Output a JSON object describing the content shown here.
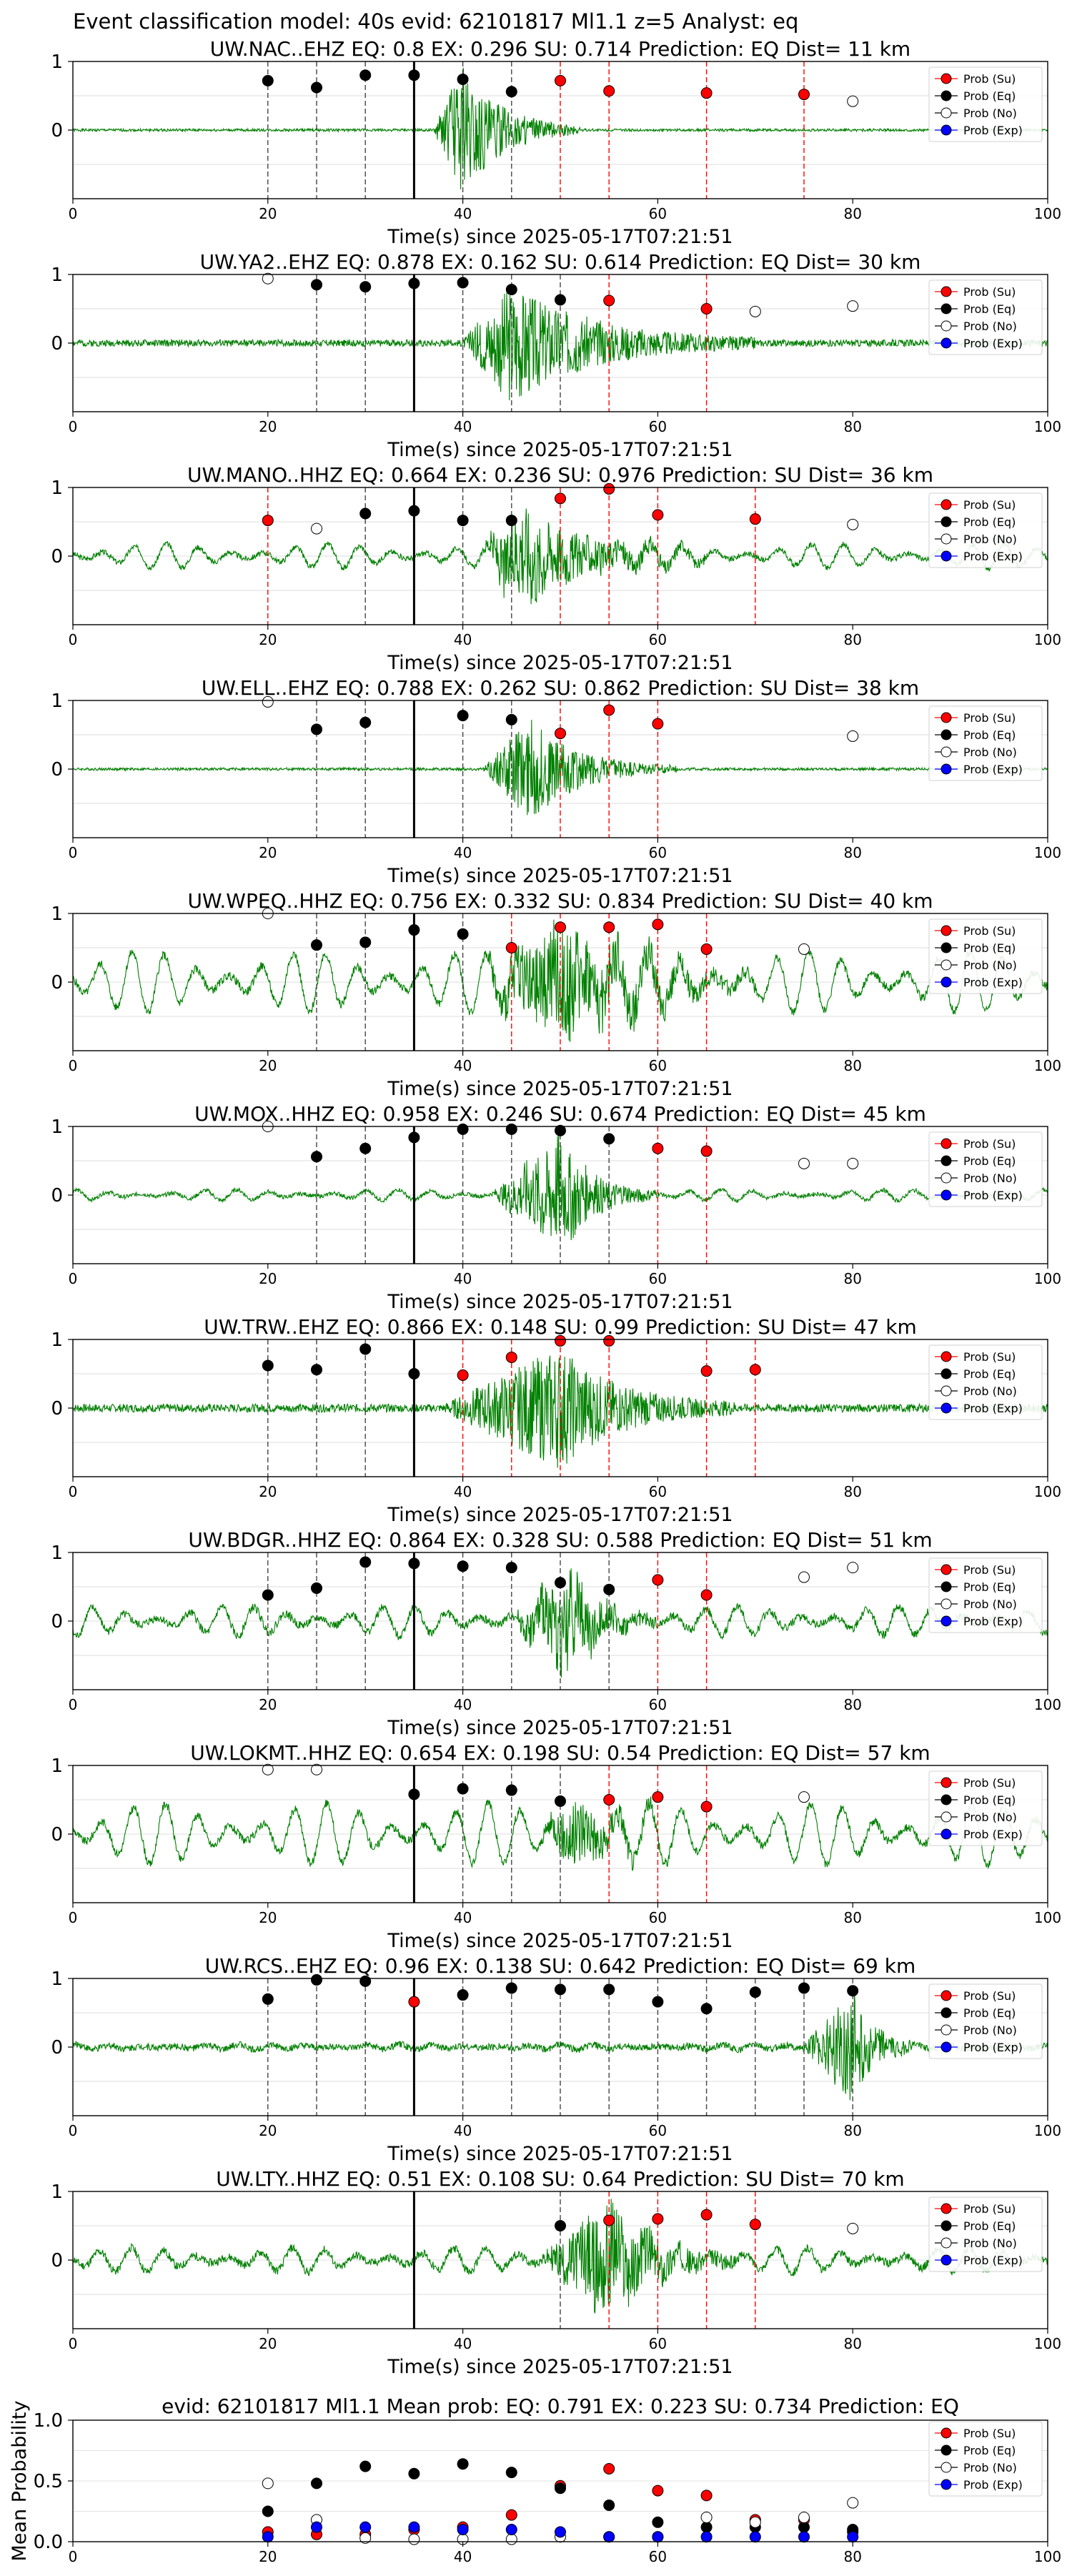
{
  "figure": {
    "suptitle": "Event classification model: 40s evid: 62101817 Ml1.1 z=5 Analyst: eq",
    "legend_labels": [
      "Prob (Su)",
      "Prob (Eq)",
      "Prob (No)",
      "Prob (Exp)"
    ],
    "xlabel": "Time(s) since 2025-05-17T07:21:51",
    "xticks": [
      0,
      20,
      40,
      60,
      80,
      100
    ],
    "yticks": [
      1,
      0
    ],
    "xlim": [
      0,
      100
    ],
    "colors": {
      "su": "#ff0000",
      "eq": "#000000",
      "no": "#ffffff",
      "exp": "#0000ff",
      "trace": "#008000",
      "su_line": "#ff0000",
      "eq_line": "#444444"
    }
  },
  "chart_data": [
    {
      "type": "scatter",
      "title": "UW.NAC..EHZ   EQ: 0.8  EX: 0.296  SU: 0.714   Prediction: EQ    Dist= 11 km",
      "xlabel": "Time(s) since 2025-05-17T07:21:51",
      "xlim": [
        0,
        100
      ],
      "ylim": [
        -1,
        1
      ],
      "pick_time": 35,
      "trace": {
        "noise": 0.02,
        "osc": 0,
        "sig_start": 37,
        "sig_peak": 40,
        "sig_end": 52,
        "sig_amp": 0.95,
        "seed": 1
      },
      "series": [
        {
          "name": "Prob (Su)",
          "x": [
            50,
            55,
            65,
            75
          ],
          "y": [
            0.72,
            0.57,
            0.54,
            0.52
          ]
        },
        {
          "name": "Prob (Eq)",
          "x": [
            20,
            25,
            30,
            35,
            40,
            45
          ],
          "y": [
            0.72,
            0.62,
            0.8,
            0.8,
            0.74,
            0.56
          ]
        },
        {
          "name": "Prob (No)",
          "x": [
            80
          ],
          "y": [
            0.42
          ]
        },
        {
          "name": "Prob (Exp)",
          "x": [],
          "y": []
        }
      ]
    },
    {
      "type": "scatter",
      "title": "UW.YA2..EHZ   EQ: 0.878  EX: 0.162  SU: 0.614   Prediction: EQ    Dist= 30 km",
      "xlabel": "Time(s) since 2025-05-17T07:21:51",
      "xlim": [
        0,
        100
      ],
      "ylim": [
        -1,
        1
      ],
      "pick_time": 35,
      "trace": {
        "noise": 0.05,
        "osc": 0,
        "sig_start": 40,
        "sig_peak": 45,
        "sig_end": 70,
        "sig_amp": 0.85,
        "seed": 2
      },
      "series": [
        {
          "name": "Prob (Su)",
          "x": [
            55,
            65
          ],
          "y": [
            0.62,
            0.5
          ]
        },
        {
          "name": "Prob (Eq)",
          "x": [
            25,
            30,
            35,
            40,
            45,
            50
          ],
          "y": [
            0.85,
            0.82,
            0.87,
            0.88,
            0.78,
            0.63
          ]
        },
        {
          "name": "Prob (No)",
          "x": [
            20,
            70,
            80
          ],
          "y": [
            0.94,
            0.46,
            0.54
          ]
        },
        {
          "name": "Prob (Exp)",
          "x": [],
          "y": []
        }
      ]
    },
    {
      "type": "scatter",
      "title": "UW.MANO..HHZ   EQ: 0.664  EX: 0.236  SU: 0.976   Prediction: SU    Dist= 36 km",
      "xlabel": "Time(s) since 2025-05-17T07:21:51",
      "xlim": [
        0,
        100
      ],
      "ylim": [
        -1,
        1
      ],
      "pick_time": 35,
      "trace": {
        "noise": 0.04,
        "osc": 0.18,
        "sig_start": 42,
        "sig_peak": 46,
        "sig_end": 65,
        "sig_amp": 0.75,
        "seed": 3
      },
      "series": [
        {
          "name": "Prob (Su)",
          "x": [
            20,
            50,
            55,
            60,
            70
          ],
          "y": [
            0.52,
            0.84,
            0.98,
            0.6,
            0.54
          ]
        },
        {
          "name": "Prob (Eq)",
          "x": [
            30,
            35,
            40,
            45
          ],
          "y": [
            0.62,
            0.66,
            0.52,
            0.52
          ]
        },
        {
          "name": "Prob (No)",
          "x": [
            25,
            80
          ],
          "y": [
            0.4,
            0.46
          ]
        },
        {
          "name": "Prob (Exp)",
          "x": [],
          "y": []
        }
      ]
    },
    {
      "type": "scatter",
      "title": "UW.ELL..EHZ   EQ: 0.788  EX: 0.262  SU: 0.862   Prediction: SU    Dist= 38 km",
      "xlabel": "Time(s) since 2025-05-17T07:21:51",
      "xlim": [
        0,
        100
      ],
      "ylim": [
        -1,
        1
      ],
      "pick_time": 35,
      "trace": {
        "noise": 0.02,
        "osc": 0,
        "sig_start": 42,
        "sig_peak": 47,
        "sig_end": 62,
        "sig_amp": 0.75,
        "seed": 4
      },
      "series": [
        {
          "name": "Prob (Su)",
          "x": [
            50,
            55,
            60
          ],
          "y": [
            0.52,
            0.86,
            0.66
          ]
        },
        {
          "name": "Prob (Eq)",
          "x": [
            25,
            30,
            40,
            45
          ],
          "y": [
            0.58,
            0.68,
            0.78,
            0.72
          ]
        },
        {
          "name": "Prob (No)",
          "x": [
            20,
            80
          ],
          "y": [
            0.98,
            0.48
          ]
        },
        {
          "name": "Prob (Exp)",
          "x": [],
          "y": []
        }
      ]
    },
    {
      "type": "scatter",
      "title": "UW.WPEQ..HHZ   EQ: 0.756  EX: 0.332  SU: 0.834   Prediction: SU    Dist= 40 km",
      "xlabel": "Time(s) since 2025-05-17T07:21:51",
      "xlim": [
        0,
        100
      ],
      "ylim": [
        -1,
        1
      ],
      "pick_time": 35,
      "trace": {
        "noise": 0.06,
        "osc": 0.45,
        "sig_start": 42,
        "sig_peak": 50,
        "sig_end": 70,
        "sig_amp": 0.85,
        "seed": 5
      },
      "series": [
        {
          "name": "Prob (Su)",
          "x": [
            45,
            50,
            55,
            60,
            65
          ],
          "y": [
            0.5,
            0.8,
            0.8,
            0.84,
            0.48
          ]
        },
        {
          "name": "Prob (Eq)",
          "x": [
            25,
            30,
            35,
            40
          ],
          "y": [
            0.54,
            0.58,
            0.76,
            0.7
          ]
        },
        {
          "name": "Prob (No)",
          "x": [
            20,
            75
          ],
          "y": [
            1.0,
            0.48
          ]
        },
        {
          "name": "Prob (Exp)",
          "x": [],
          "y": []
        }
      ]
    },
    {
      "type": "scatter",
      "title": "UW.MOX..HHZ   EQ: 0.958  EX: 0.246  SU: 0.674   Prediction: EQ    Dist= 45 km",
      "xlabel": "Time(s) since 2025-05-17T07:21:51",
      "xlim": [
        0,
        100
      ],
      "ylim": [
        -1,
        1
      ],
      "pick_time": 35,
      "trace": {
        "noise": 0.03,
        "osc": 0.08,
        "sig_start": 43,
        "sig_peak": 50,
        "sig_end": 60,
        "sig_amp": 0.85,
        "seed": 6
      },
      "series": [
        {
          "name": "Prob (Su)",
          "x": [
            60,
            65
          ],
          "y": [
            0.68,
            0.64
          ]
        },
        {
          "name": "Prob (Eq)",
          "x": [
            25,
            30,
            35,
            40,
            45,
            50,
            55
          ],
          "y": [
            0.56,
            0.68,
            0.84,
            0.96,
            0.96,
            0.94,
            0.82
          ]
        },
        {
          "name": "Prob (No)",
          "x": [
            20,
            75,
            80
          ],
          "y": [
            1.0,
            0.46,
            0.46
          ]
        },
        {
          "name": "Prob (Exp)",
          "x": [],
          "y": []
        }
      ]
    },
    {
      "type": "scatter",
      "title": "UW.TRW..EHZ   EQ: 0.866  EX: 0.148  SU: 0.99   Prediction: SU    Dist= 47 km",
      "xlabel": "Time(s) since 2025-05-17T07:21:51",
      "xlim": [
        0,
        100
      ],
      "ylim": [
        -1,
        1
      ],
      "pick_time": 35,
      "trace": {
        "noise": 0.06,
        "osc": 0,
        "sig_start": 38,
        "sig_peak": 50,
        "sig_end": 68,
        "sig_amp": 0.85,
        "seed": 7
      },
      "series": [
        {
          "name": "Prob (Su)",
          "x": [
            40,
            45,
            50,
            55,
            65,
            70
          ],
          "y": [
            0.48,
            0.74,
            0.98,
            0.98,
            0.54,
            0.56
          ]
        },
        {
          "name": "Prob (Eq)",
          "x": [
            20,
            25,
            30,
            35
          ],
          "y": [
            0.62,
            0.56,
            0.86,
            0.5
          ]
        },
        {
          "name": "Prob (No)",
          "x": [],
          "y": []
        },
        {
          "name": "Prob (Exp)",
          "x": [],
          "y": []
        }
      ]
    },
    {
      "type": "scatter",
      "title": "UW.BDGR..HHZ   EQ: 0.864  EX: 0.328  SU: 0.588   Prediction: EQ    Dist= 51 km",
      "xlabel": "Time(s) since 2025-05-17T07:21:51",
      "xlim": [
        0,
        100
      ],
      "ylim": [
        -1,
        1
      ],
      "pick_time": 35,
      "trace": {
        "noise": 0.06,
        "osc": 0.22,
        "sig_start": 45,
        "sig_peak": 51,
        "sig_end": 60,
        "sig_amp": 0.7,
        "seed": 8
      },
      "series": [
        {
          "name": "Prob (Su)",
          "x": [
            60,
            65
          ],
          "y": [
            0.6,
            0.38
          ]
        },
        {
          "name": "Prob (Eq)",
          "x": [
            20,
            25,
            30,
            35,
            40,
            45,
            50,
            55
          ],
          "y": [
            0.38,
            0.48,
            0.86,
            0.84,
            0.8,
            0.78,
            0.56,
            0.46
          ]
        },
        {
          "name": "Prob (No)",
          "x": [
            75,
            80
          ],
          "y": [
            0.64,
            0.78
          ]
        },
        {
          "name": "Prob (Exp)",
          "x": [],
          "y": []
        }
      ]
    },
    {
      "type": "scatter",
      "title": "UW.LOKMT..HHZ   EQ: 0.654  EX: 0.198  SU: 0.54   Prediction: EQ    Dist= 57 km",
      "xlabel": "Time(s) since 2025-05-17T07:21:51",
      "xlim": [
        0,
        100
      ],
      "ylim": [
        -1,
        1
      ],
      "pick_time": 35,
      "trace": {
        "noise": 0.06,
        "osc": 0.45,
        "sig_start": 48,
        "sig_peak": 52,
        "sig_end": 62,
        "sig_amp": 0.5,
        "seed": 9
      },
      "series": [
        {
          "name": "Prob (Su)",
          "x": [
            55,
            60,
            65
          ],
          "y": [
            0.5,
            0.54,
            0.4
          ]
        },
        {
          "name": "Prob (Eq)",
          "x": [
            35,
            40,
            45,
            50
          ],
          "y": [
            0.58,
            0.66,
            0.64,
            0.48
          ]
        },
        {
          "name": "Prob (No)",
          "x": [
            20,
            25,
            75
          ],
          "y": [
            0.94,
            0.94,
            0.54
          ]
        },
        {
          "name": "Prob (Exp)",
          "x": [],
          "y": []
        }
      ]
    },
    {
      "type": "scatter",
      "title": "UW.RCS..EHZ   EQ: 0.96  EX: 0.138  SU: 0.642   Prediction: EQ    Dist= 69 km",
      "xlabel": "Time(s) since 2025-05-17T07:21:51",
      "xlim": [
        0,
        100
      ],
      "ylim": [
        -1,
        1
      ],
      "pick_time": 35,
      "trace": {
        "noise": 0.05,
        "osc": 0.04,
        "sig_start": 75,
        "sig_peak": 80,
        "sig_end": 86,
        "sig_amp": 0.8,
        "seed": 10
      },
      "series": [
        {
          "name": "Prob (Su)",
          "x": [
            35
          ],
          "y": [
            0.66
          ]
        },
        {
          "name": "Prob (Eq)",
          "x": [
            20,
            25,
            30,
            40,
            45,
            50,
            55,
            60,
            65,
            70,
            75,
            80
          ],
          "y": [
            0.7,
            0.98,
            0.96,
            0.76,
            0.86,
            0.84,
            0.84,
            0.66,
            0.56,
            0.8,
            0.86,
            0.82
          ]
        },
        {
          "name": "Prob (No)",
          "x": [],
          "y": []
        },
        {
          "name": "Prob (Exp)",
          "x": [],
          "y": []
        }
      ]
    },
    {
      "type": "scatter",
      "title": "UW.LTY..HHZ   EQ: 0.51  EX: 0.108  SU: 0.64   Prediction: SU    Dist= 70 km",
      "xlabel": "Time(s) since 2025-05-17T07:21:51",
      "xlim": [
        0,
        100
      ],
      "ylim": [
        -1,
        1
      ],
      "pick_time": 35,
      "trace": {
        "noise": 0.06,
        "osc": 0.18,
        "sig_start": 48,
        "sig_peak": 55,
        "sig_end": 68,
        "sig_amp": 0.8,
        "seed": 11
      },
      "series": [
        {
          "name": "Prob (Su)",
          "x": [
            55,
            60,
            65,
            70
          ],
          "y": [
            0.58,
            0.6,
            0.66,
            0.52
          ]
        },
        {
          "name": "Prob (Eq)",
          "x": [
            50
          ],
          "y": [
            0.5
          ]
        },
        {
          "name": "Prob (No)",
          "x": [
            80
          ],
          "y": [
            0.46
          ]
        },
        {
          "name": "Prob (Exp)",
          "x": [],
          "y": []
        }
      ]
    },
    {
      "type": "scatter",
      "title": "evid: 62101817  Ml1.1    Mean prob:   EQ: 0.791  EX: 0.223  SU: 0.734   Prediction: EQ",
      "ylabel": "Mean Probability",
      "xlim": [
        0,
        100
      ],
      "ylim": [
        0,
        1
      ],
      "yticks": [
        "1.0",
        "0.5",
        "0.0"
      ],
      "series": [
        {
          "name": "Prob (Su)",
          "x": [
            20,
            25,
            30,
            35,
            40,
            45,
            50,
            55,
            60,
            65,
            70,
            75,
            80
          ],
          "y": [
            0.08,
            0.06,
            0.06,
            0.1,
            0.12,
            0.22,
            0.46,
            0.6,
            0.42,
            0.38,
            0.18,
            0.18,
            0.08
          ]
        },
        {
          "name": "Prob (Eq)",
          "x": [
            20,
            25,
            30,
            35,
            40,
            45,
            50,
            55,
            60,
            65,
            70,
            75,
            80
          ],
          "y": [
            0.25,
            0.48,
            0.62,
            0.56,
            0.64,
            0.57,
            0.44,
            0.3,
            0.16,
            0.12,
            0.12,
            0.12,
            0.1
          ]
        },
        {
          "name": "Prob (No)",
          "x": [
            20,
            25,
            30,
            35,
            40,
            45,
            50,
            55,
            60,
            65,
            70,
            75,
            80
          ],
          "y": [
            0.48,
            0.18,
            0.03,
            0.02,
            0.02,
            0.02,
            0.04,
            0.04,
            0.04,
            0.2,
            0.16,
            0.2,
            0.32
          ]
        },
        {
          "name": "Prob (Exp)",
          "x": [
            20,
            25,
            30,
            35,
            40,
            45,
            50,
            55,
            60,
            65,
            70,
            75,
            80
          ],
          "y": [
            0.04,
            0.12,
            0.12,
            0.12,
            0.1,
            0.1,
            0.08,
            0.04,
            0.04,
            0.04,
            0.04,
            0.04,
            0.04
          ]
        }
      ]
    }
  ]
}
